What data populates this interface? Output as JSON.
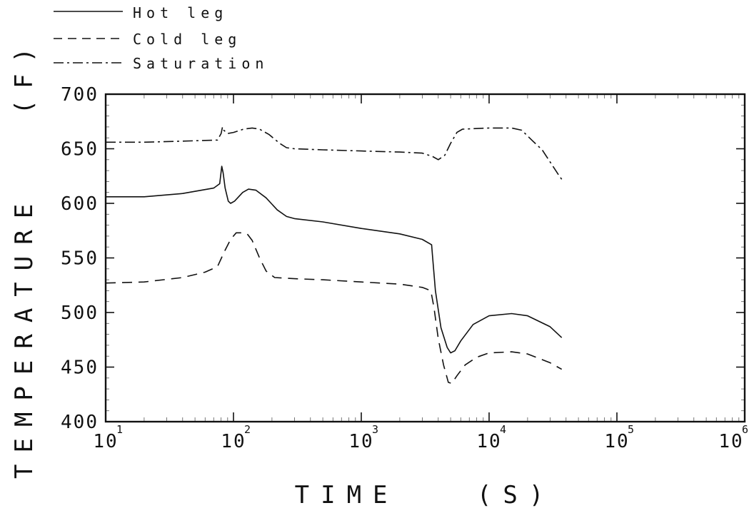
{
  "chart_data": {
    "type": "line",
    "xlabel": "TIME   (S)",
    "ylabel": "TEMPERATURE   (F)",
    "xscale": "log",
    "xlim": [
      10,
      1000000
    ],
    "ylim": [
      400,
      700
    ],
    "xticks": [
      {
        "value": 10,
        "base": "10",
        "exp": "1"
      },
      {
        "value": 100,
        "base": "10",
        "exp": "2"
      },
      {
        "value": 1000,
        "base": "10",
        "exp": "3"
      },
      {
        "value": 10000,
        "base": "10",
        "exp": "4"
      },
      {
        "value": 100000,
        "base": "10",
        "exp": "5"
      },
      {
        "value": 1000000,
        "base": "10",
        "exp": "6"
      }
    ],
    "yticks": [
      "400",
      "450",
      "500",
      "550",
      "600",
      "650",
      "700"
    ],
    "grid": false,
    "legend_position": "top-left",
    "series": [
      {
        "name": "Hot leg",
        "style": "solid",
        "points": [
          [
            10,
            606
          ],
          [
            20,
            606
          ],
          [
            40,
            609
          ],
          [
            70,
            614
          ],
          [
            78,
            618
          ],
          [
            80,
            629
          ],
          [
            81,
            634
          ],
          [
            83,
            628
          ],
          [
            86,
            614
          ],
          [
            91,
            602
          ],
          [
            95,
            600
          ],
          [
            102,
            602
          ],
          [
            118,
            610
          ],
          [
            131,
            613
          ],
          [
            150,
            612
          ],
          [
            180,
            605
          ],
          [
            220,
            594
          ],
          [
            260,
            588
          ],
          [
            300,
            586
          ],
          [
            500,
            583
          ],
          [
            1000,
            577
          ],
          [
            2000,
            572
          ],
          [
            3000,
            567
          ],
          [
            3550,
            562
          ],
          [
            3600,
            553
          ],
          [
            3800,
            520
          ],
          [
            4200,
            486
          ],
          [
            4700,
            468
          ],
          [
            5000,
            463
          ],
          [
            5400,
            465
          ],
          [
            6000,
            474
          ],
          [
            7500,
            489
          ],
          [
            10000,
            497
          ],
          [
            15000,
            499
          ],
          [
            20000,
            497
          ],
          [
            30000,
            487
          ],
          [
            37000,
            477
          ]
        ]
      },
      {
        "name": "Cold leg",
        "style": "dashed",
        "points": [
          [
            10,
            527
          ],
          [
            20,
            528
          ],
          [
            40,
            532
          ],
          [
            60,
            537
          ],
          [
            75,
            542
          ],
          [
            85,
            556
          ],
          [
            95,
            567
          ],
          [
            105,
            573
          ],
          [
            118,
            573
          ],
          [
            128,
            572
          ],
          [
            140,
            566
          ],
          [
            160,
            550
          ],
          [
            180,
            538
          ],
          [
            210,
            532
          ],
          [
            300,
            531
          ],
          [
            500,
            530
          ],
          [
            1000,
            528
          ],
          [
            2000,
            526
          ],
          [
            3000,
            523
          ],
          [
            3500,
            520
          ],
          [
            3700,
            505
          ],
          [
            4000,
            476
          ],
          [
            4400,
            452
          ],
          [
            4800,
            436
          ],
          [
            5100,
            435
          ],
          [
            5600,
            442
          ],
          [
            6500,
            452
          ],
          [
            8000,
            459
          ],
          [
            10000,
            463
          ],
          [
            15000,
            464
          ],
          [
            20000,
            462
          ],
          [
            30000,
            454
          ],
          [
            37000,
            448
          ]
        ]
      },
      {
        "name": "Saturation",
        "style": "dashdot",
        "points": [
          [
            10,
            656
          ],
          [
            20,
            656
          ],
          [
            40,
            657
          ],
          [
            75,
            658
          ],
          [
            80,
            664
          ],
          [
            82,
            670
          ],
          [
            84,
            667
          ],
          [
            90,
            664
          ],
          [
            100,
            665
          ],
          [
            120,
            668
          ],
          [
            140,
            669
          ],
          [
            160,
            668
          ],
          [
            190,
            663
          ],
          [
            230,
            655
          ],
          [
            260,
            651
          ],
          [
            300,
            650
          ],
          [
            500,
            649
          ],
          [
            1000,
            648
          ],
          [
            2000,
            647
          ],
          [
            3000,
            646
          ],
          [
            3600,
            643
          ],
          [
            4000,
            640
          ],
          [
            4500,
            644
          ],
          [
            5000,
            655
          ],
          [
            5600,
            665
          ],
          [
            6200,
            668
          ],
          [
            10000,
            669
          ],
          [
            15000,
            669
          ],
          [
            18000,
            667
          ],
          [
            22000,
            657
          ],
          [
            26000,
            649
          ],
          [
            30000,
            638
          ],
          [
            35000,
            626
          ],
          [
            37000,
            622
          ]
        ]
      }
    ]
  }
}
